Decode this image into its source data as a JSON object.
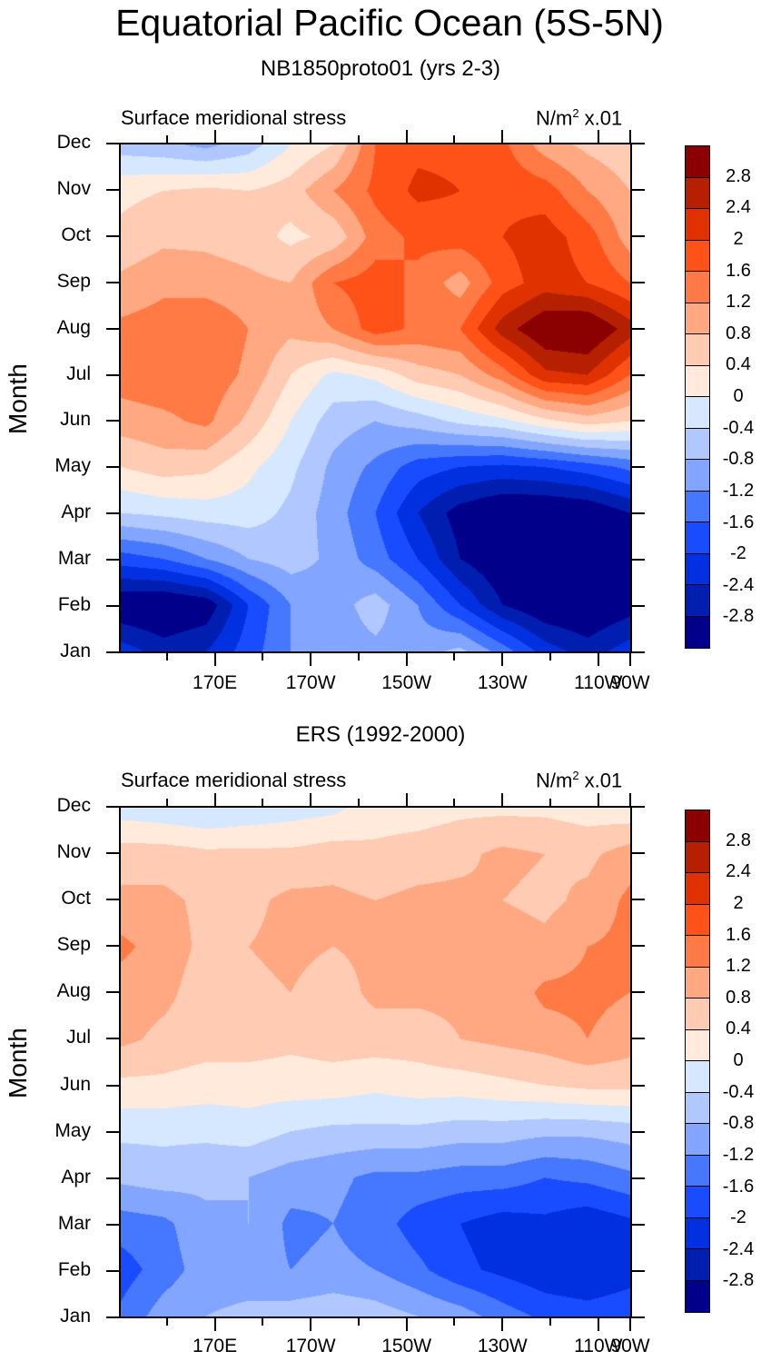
{
  "title": "Equatorial Pacific Ocean (5S-5N)",
  "colorbar": {
    "levels": [
      "2.8",
      "2.4",
      "2",
      "1.6",
      "1.2",
      "0.8",
      "0.4",
      "0",
      "-0.4",
      "-0.8",
      "-1.2",
      "-1.6",
      "-2",
      "-2.4",
      "-2.8"
    ],
    "colors": [
      "#8b0000",
      "#b52000",
      "#e03200",
      "#ff5219",
      "#ff7a45",
      "#ffa882",
      "#ffcbb2",
      "#ffeadb",
      "#d6e8ff",
      "#b0c8ff",
      "#82a6ff",
      "#4577ff",
      "#1a4cff",
      "#0030e0",
      "#001fb0",
      "#00008a"
    ]
  },
  "chart_data": [
    {
      "type": "heatmap",
      "title": "NB1850proto01 (yrs 2-3)",
      "left_label": "Surface meridional stress",
      "right_label_base": "N/m",
      "right_label_sup": "2",
      "right_label_tail": " x.01",
      "ylabel": "Month",
      "xlabel": "",
      "x_ticks": [
        "170E",
        "170W",
        "150W",
        "130W",
        "110W",
        "90W"
      ],
      "y_ticks": [
        "Jan",
        "Feb",
        "Mar",
        "Apr",
        "May",
        "Jun",
        "Jul",
        "Aug",
        "Sep",
        "Oct",
        "Nov",
        "Dec"
      ],
      "x_range": [
        "155E",
        "90W"
      ],
      "y_range": [
        "Jan",
        "Dec"
      ],
      "units": "N/m^2 x .01",
      "contour_levels": [
        -2.8,
        -2.4,
        -2.0,
        -1.6,
        -1.2,
        -0.8,
        -0.4,
        0,
        0.4,
        0.8,
        1.2,
        1.6,
        2.0,
        2.4,
        2.8
      ],
      "x": [
        "155E",
        "165E",
        "175E",
        "175W",
        "165W",
        "155W",
        "145W",
        "135W",
        "125W",
        "115W",
        "105W",
        "95W",
        "90W"
      ],
      "y": [
        "Jan",
        "Feb",
        "Mar",
        "Apr",
        "May",
        "Jun",
        "Jul",
        "Aug",
        "Sep",
        "Oct",
        "Nov",
        "Dec"
      ],
      "z": [
        [
          -2.2,
          -2.6,
          -2.4,
          -1.8,
          -1.2,
          -1.0,
          -0.9,
          -1.0,
          -0.7,
          -1.4,
          -2.2,
          -2.6,
          -2.2
        ],
        [
          -3.2,
          -3.3,
          -3.1,
          -2.0,
          -1.2,
          -1.0,
          -0.6,
          -1.2,
          -2.0,
          -2.8,
          -3.2,
          -3.3,
          -3.0
        ],
        [
          -1.8,
          -1.6,
          -1.2,
          -0.8,
          -0.6,
          -0.9,
          -1.4,
          -2.0,
          -2.8,
          -3.2,
          -3.3,
          -3.4,
          -3.2
        ],
        [
          -0.4,
          -0.3,
          -0.2,
          -0.2,
          -0.5,
          -1.0,
          -1.6,
          -2.4,
          -3.0,
          -3.3,
          -3.3,
          -3.2,
          -2.8
        ],
        [
          0.4,
          0.6,
          0.5,
          0.1,
          -0.3,
          -0.9,
          -1.3,
          -1.8,
          -2.0,
          -2.1,
          -2.0,
          -1.8,
          -1.5
        ],
        [
          1.0,
          1.1,
          1.3,
          0.7,
          0.0,
          -0.6,
          -0.8,
          -0.6,
          -0.3,
          -0.1,
          0.3,
          0.6,
          0.4
        ],
        [
          1.4,
          1.5,
          1.5,
          1.1,
          0.4,
          -0.1,
          0.1,
          0.6,
          0.8,
          1.4,
          2.3,
          2.4,
          1.6
        ],
        [
          1.3,
          1.4,
          1.6,
          1.2,
          0.9,
          1.2,
          1.8,
          1.5,
          1.6,
          2.6,
          3.2,
          3.3,
          2.6
        ],
        [
          0.9,
          1.1,
          1.0,
          0.9,
          0.8,
          1.6,
          1.8,
          1.5,
          1.0,
          1.8,
          2.2,
          2.0,
          1.6
        ],
        [
          0.5,
          0.7,
          0.7,
          0.6,
          0.3,
          0.5,
          1.4,
          1.7,
          1.8,
          2.0,
          2.2,
          1.8,
          1.0
        ],
        [
          0.3,
          0.4,
          0.5,
          0.4,
          0.6,
          1.2,
          1.7,
          2.1,
          2.0,
          1.9,
          1.8,
          1.2,
          0.8
        ],
        [
          -0.6,
          -0.7,
          -0.9,
          -0.6,
          0.0,
          0.4,
          1.6,
          1.9,
          1.9,
          1.7,
          1.0,
          0.7,
          0.5
        ]
      ]
    },
    {
      "type": "heatmap",
      "title": "ERS (1992-2000)",
      "left_label": "Surface meridional stress",
      "right_label_base": "N/m",
      "right_label_sup": "2",
      "right_label_tail": " x.01",
      "ylabel": "Month",
      "xlabel": "",
      "x_ticks": [
        "170E",
        "170W",
        "150W",
        "130W",
        "110W",
        "90W"
      ],
      "y_ticks": [
        "Jan",
        "Feb",
        "Mar",
        "Apr",
        "May",
        "Jun",
        "Jul",
        "Aug",
        "Sep",
        "Oct",
        "Nov",
        "Dec"
      ],
      "x_range": [
        "155E",
        "90W"
      ],
      "y_range": [
        "Jan",
        "Dec"
      ],
      "units": "N/m^2 x .01",
      "contour_levels": [
        -2.8,
        -2.4,
        -2.0,
        -1.6,
        -1.2,
        -0.8,
        -0.4,
        0,
        0.4,
        0.8,
        1.2,
        1.6,
        2.0,
        2.4,
        2.8
      ],
      "x": [
        "155E",
        "165E",
        "175E",
        "175W",
        "165W",
        "155W",
        "145W",
        "135W",
        "125W",
        "115W",
        "105W",
        "95W",
        "90W"
      ],
      "y": [
        "Jan",
        "Feb",
        "Mar",
        "Apr",
        "May",
        "Jun",
        "Jul",
        "Aug",
        "Sep",
        "Oct",
        "Nov",
        "Dec"
      ],
      "z": [
        [
          -1.5,
          -1.0,
          -0.8,
          -0.7,
          -0.6,
          -0.5,
          -0.6,
          -0.8,
          -1.0,
          -1.4,
          -1.7,
          -1.8,
          -1.7
        ],
        [
          -1.8,
          -1.4,
          -1.0,
          -1.0,
          -1.2,
          -1.1,
          -1.2,
          -1.5,
          -1.9,
          -2.1,
          -2.3,
          -2.4,
          -2.2
        ],
        [
          -1.4,
          -1.3,
          -0.9,
          -0.8,
          -1.3,
          -1.2,
          -1.4,
          -1.8,
          -2.0,
          -2.2,
          -2.1,
          -2.3,
          -2.1
        ],
        [
          -0.7,
          -0.6,
          -0.7,
          -0.8,
          -1.0,
          -1.1,
          -1.3,
          -1.3,
          -1.4,
          -1.4,
          -1.6,
          -1.5,
          -1.3
        ],
        [
          -0.3,
          -0.3,
          -0.3,
          -0.2,
          -0.4,
          -0.5,
          -0.5,
          -0.5,
          -0.6,
          -0.6,
          -0.7,
          -0.7,
          -0.6
        ],
        [
          0.3,
          0.3,
          0.2,
          0.2,
          0.2,
          0.2,
          0.1,
          0.2,
          0.2,
          0.3,
          0.4,
          0.5,
          0.5
        ],
        [
          0.9,
          0.7,
          0.6,
          0.6,
          0.5,
          0.6,
          0.6,
          0.6,
          0.8,
          0.9,
          1.0,
          1.2,
          1.0
        ],
        [
          1.0,
          0.9,
          0.6,
          0.7,
          0.8,
          0.6,
          0.9,
          0.9,
          0.9,
          0.9,
          1.3,
          1.3,
          1.2
        ],
        [
          1.3,
          1.0,
          0.7,
          0.8,
          0.9,
          0.8,
          0.9,
          1.0,
          1.0,
          1.0,
          0.9,
          1.2,
          1.3
        ],
        [
          0.9,
          0.9,
          0.7,
          0.7,
          0.9,
          0.9,
          0.8,
          0.9,
          0.9,
          0.8,
          0.7,
          0.9,
          1.3
        ],
        [
          0.6,
          0.6,
          0.5,
          0.5,
          0.5,
          0.6,
          0.5,
          0.6,
          0.7,
          0.9,
          0.8,
          0.7,
          1.0
        ],
        [
          -0.2,
          -0.3,
          -0.4,
          -0.3,
          -0.2,
          -0.1,
          0.2,
          0.2,
          0.3,
          0.3,
          0.3,
          0.2,
          0.1
        ]
      ]
    }
  ]
}
